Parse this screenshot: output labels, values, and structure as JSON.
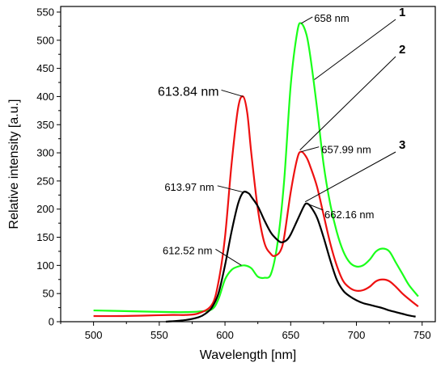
{
  "chart_data": {
    "type": "line",
    "xlabel": "Wavelength [nm]",
    "ylabel": "Relative intensity [a.u.]",
    "xlim": [
      475,
      760
    ],
    "ylim": [
      0,
      560
    ],
    "xticks": [
      500,
      550,
      600,
      650,
      700,
      750
    ],
    "yticks": [
      0,
      50,
      100,
      150,
      200,
      250,
      300,
      350,
      400,
      450,
      500,
      550
    ],
    "grid": false,
    "series": [
      {
        "color": "#1aff1a",
        "x": [
          500,
          520,
          540,
          560,
          570,
          580,
          590,
          595,
          600,
          605,
          610,
          615,
          620,
          625,
          630,
          635,
          640,
          645,
          650,
          655,
          658,
          662,
          665,
          670,
          675,
          680,
          685,
          690,
          695,
          700,
          705,
          710,
          715,
          720,
          725,
          730,
          735,
          740,
          747
        ],
        "y": [
          20,
          19,
          18,
          17,
          17,
          18,
          22,
          40,
          75,
          92,
          98,
          100,
          95,
          80,
          78,
          85,
          140,
          250,
          420,
          515,
          530,
          510,
          470,
          380,
          280,
          210,
          160,
          125,
          105,
          98,
          100,
          110,
          125,
          130,
          125,
          105,
          85,
          65,
          45
        ]
      },
      {
        "color": "#ee1111",
        "x": [
          500,
          520,
          540,
          560,
          570,
          580,
          590,
          595,
          600,
          605,
          610,
          613.84,
          617,
          620,
          625,
          630,
          635,
          638,
          642,
          645,
          650,
          655,
          657.99,
          662,
          665,
          670,
          675,
          680,
          685,
          690,
          695,
          700,
          705,
          710,
          715,
          720,
          725,
          730,
          735,
          740,
          747
        ],
        "y": [
          10,
          10,
          11,
          12,
          12,
          15,
          30,
          70,
          150,
          280,
          380,
          400,
          370,
          300,
          200,
          140,
          120,
          117,
          125,
          150,
          230,
          290,
          302,
          292,
          275,
          240,
          190,
          140,
          100,
          72,
          60,
          55,
          56,
          62,
          72,
          75,
          72,
          62,
          50,
          40,
          27
        ]
      },
      {
        "color": "#000000",
        "x": [
          555,
          570,
          580,
          585,
          590,
          595,
          600,
          605,
          610,
          613.97,
          618,
          620,
          625,
          630,
          635,
          640,
          643,
          647,
          650,
          655,
          660,
          662.16,
          665,
          670,
          675,
          680,
          685,
          690,
          695,
          700,
          705,
          710,
          715,
          720,
          725,
          730,
          735,
          740,
          745
        ],
        "y": [
          0,
          3,
          8,
          14,
          25,
          50,
          100,
          160,
          210,
          230,
          228,
          222,
          205,
          180,
          158,
          145,
          141,
          145,
          155,
          180,
          205,
          210,
          205,
          185,
          150,
          110,
          75,
          55,
          45,
          38,
          33,
          30,
          27,
          24,
          20,
          17,
          14,
          11,
          9
        ]
      }
    ],
    "annotations": [
      {
        "text": "613.84 nm",
        "x": 613.84,
        "y": 400
      },
      {
        "text": "613.97 nm",
        "x": 613.97,
        "y": 230
      },
      {
        "text": "612.52 nm",
        "x": 612.52,
        "y": 100
      },
      {
        "text": "658 nm",
        "x": 658,
        "y": 530
      },
      {
        "text": "657.99 nm",
        "x": 657.99,
        "y": 302
      },
      {
        "text": "662.16 nm",
        "x": 662.16,
        "y": 210
      }
    ],
    "curve_labels": [
      {
        "text": "1",
        "series": 0
      },
      {
        "text": "2",
        "series": 1
      },
      {
        "text": "3",
        "series": 2
      }
    ]
  }
}
